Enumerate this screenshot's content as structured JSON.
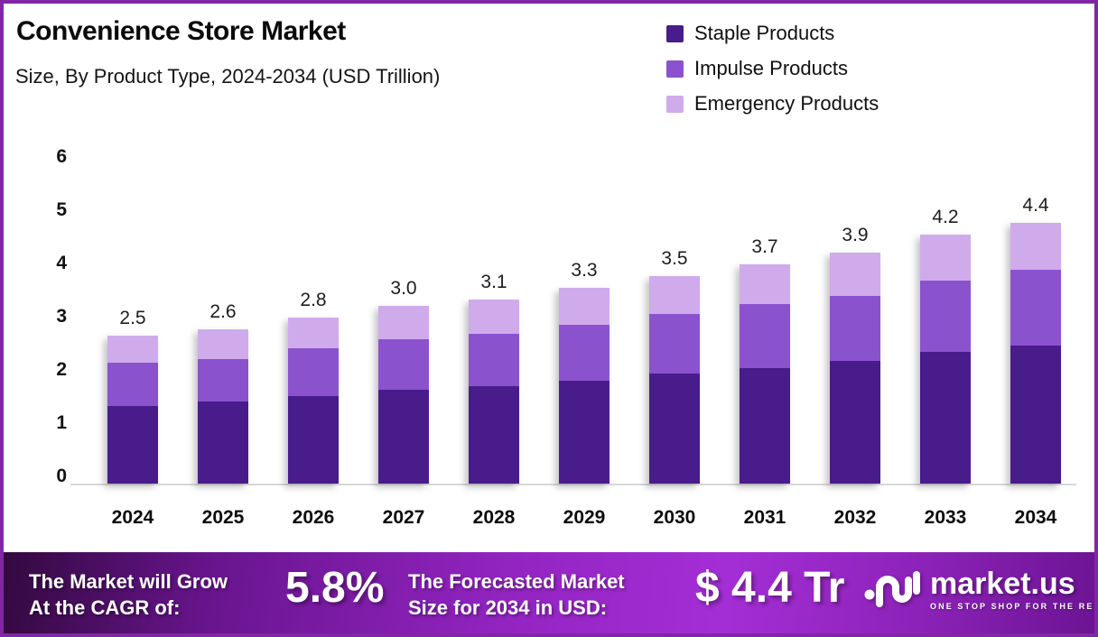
{
  "header": {
    "title": "Convenience Store Market",
    "subtitle": "Size, By Product Type, 2024-2034 (USD Trillion)"
  },
  "chart_data": {
    "type": "bar",
    "stacked": true,
    "title": "Convenience Store Market",
    "subtitle": "Size, By Product Type, 2024-2034 (USD Trillion)",
    "unit": "USD Trillion",
    "categories": [
      "2024",
      "2025",
      "2026",
      "2027",
      "2028",
      "2029",
      "2030",
      "2031",
      "2032",
      "2033",
      "2034"
    ],
    "series": [
      {
        "name": "Staple Products",
        "color": "#481C8B",
        "values": [
          1.31,
          1.38,
          1.48,
          1.58,
          1.65,
          1.74,
          1.85,
          1.95,
          2.07,
          2.22,
          2.33
        ]
      },
      {
        "name": "Impulse Products",
        "color": "#8B52CE",
        "values": [
          0.73,
          0.72,
          0.8,
          0.86,
          0.88,
          0.94,
          1.01,
          1.08,
          1.1,
          1.2,
          1.27
        ]
      },
      {
        "name": "Emergency Products",
        "color": "#D0ABEC",
        "values": [
          0.46,
          0.5,
          0.52,
          0.56,
          0.57,
          0.62,
          0.64,
          0.67,
          0.73,
          0.78,
          0.8
        ]
      }
    ],
    "totals": [
      2.5,
      2.6,
      2.8,
      3.0,
      3.1,
      3.3,
      3.5,
      3.7,
      3.9,
      4.2,
      4.4
    ],
    "total_labels": [
      "2.5",
      "2.6",
      "2.8",
      "3.0",
      "3.1",
      "3.3",
      "3.5",
      "3.7",
      "3.9",
      "4.2",
      "4.4"
    ],
    "y_ticks": [
      "0",
      "1",
      "2",
      "3",
      "4",
      "5",
      "6"
    ],
    "ylim": [
      0,
      6
    ],
    "grid": false,
    "legend_position": "top-right"
  },
  "colors": {
    "page_border": "#8127A3",
    "axis_line": "#D8D8D8",
    "banner_gradient_start": "#33093F",
    "banner_gradient_mid": "#A42ED6",
    "banner_gradient_end": "#6C1493"
  },
  "banner": {
    "cagr_label_line1": "The Market will Grow",
    "cagr_label_line2": "At the CAGR of:",
    "cagr_value": "5.8%",
    "forecast_label_line1": "The Forecasted Market",
    "forecast_label_line2": "Size for 2034 in USD:",
    "forecast_value": "$ 4.4 Tr",
    "brand_name": "market.us",
    "brand_tagline": "ONE STOP SHOP FOR THE REPORTS"
  }
}
